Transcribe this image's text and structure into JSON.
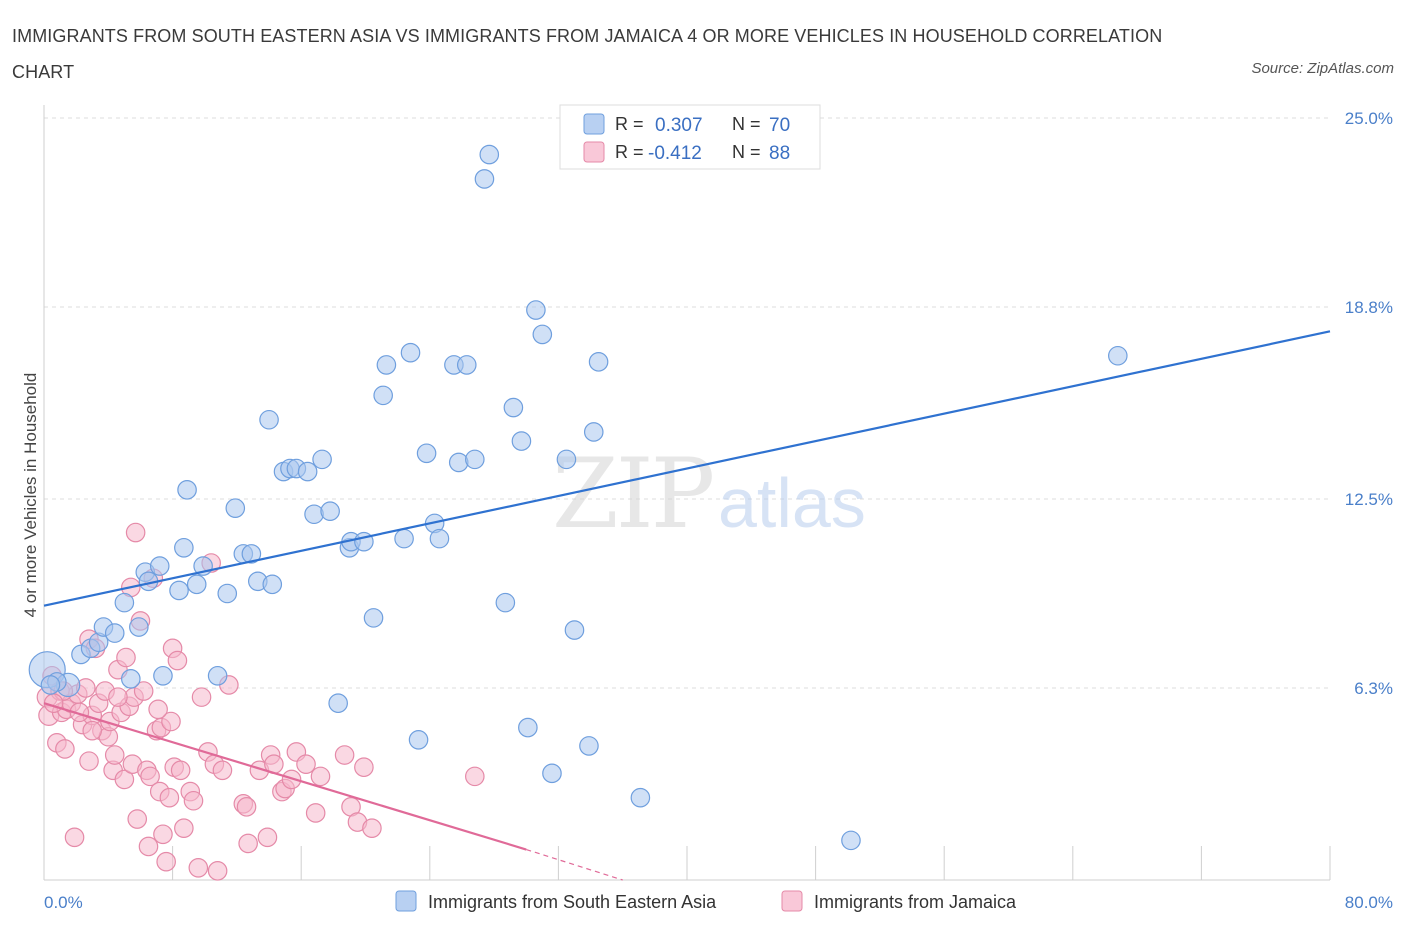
{
  "title": "IMMIGRANTS FROM SOUTH EASTERN ASIA VS IMMIGRANTS FROM JAMAICA 4 OR MORE VEHICLES IN HOUSEHOLD CORRELATION CHART",
  "source": "Source: ZipAtlas.com",
  "watermark": {
    "zip": "ZIP",
    "atlas": "atlas"
  },
  "colors": {
    "blue_fill": "#a9c6ef",
    "blue_stroke": "#6f9fde",
    "blue_line": "#2f72d0",
    "pink_fill": "#f5b8cc",
    "pink_stroke": "#e58aa8",
    "pink_line": "#e06a98",
    "grid": "#dcdcdc",
    "tick_text": "#4a7fc9"
  },
  "legend": {
    "row1_r_label": "R =",
    "row1_r_value": "0.307",
    "row1_n_label": "N =",
    "row1_n_value": "70",
    "row2_r_label": "R =",
    "row2_r_value": "-0.412",
    "row2_n_label": "N =",
    "row2_n_value": "88"
  },
  "chart_data": {
    "type": "scatter",
    "ylabel": "4 or more Vehicles in Household",
    "xlim": [
      0,
      80
    ],
    "ylim": [
      0,
      25
    ],
    "x_tick_labels": [
      "0.0%",
      "80.0%"
    ],
    "y_ticks": [
      {
        "value": 6.3,
        "label": "6.3%"
      },
      {
        "value": 12.5,
        "label": "12.5%"
      },
      {
        "value": 18.8,
        "label": "18.8%"
      },
      {
        "value": 25.0,
        "label": "25.0%"
      }
    ],
    "grid": true,
    "series": [
      {
        "name": "Immigrants from South Eastern Asia",
        "color": "blue",
        "trend": {
          "x": [
            0,
            80
          ],
          "y": [
            9.0,
            18.0
          ],
          "dashed_from_x": null
        },
        "points": [
          [
            0.2,
            6.9,
            22
          ],
          [
            1.5,
            6.4,
            14
          ],
          [
            0.8,
            6.5,
            11
          ],
          [
            2.3,
            7.4,
            11
          ],
          [
            2.9,
            7.6,
            11
          ],
          [
            3.4,
            7.8,
            11
          ],
          [
            3.7,
            8.3,
            11
          ],
          [
            4.4,
            8.1,
            11
          ],
          [
            5.0,
            9.1,
            11
          ],
          [
            5.4,
            6.6,
            11
          ],
          [
            5.9,
            8.3,
            11
          ],
          [
            6.3,
            10.1,
            11
          ],
          [
            6.5,
            9.8,
            11
          ],
          [
            7.2,
            10.3,
            11
          ],
          [
            7.4,
            6.7,
            11
          ],
          [
            8.4,
            9.5,
            11
          ],
          [
            8.7,
            10.9,
            11
          ],
          [
            8.9,
            12.8,
            11
          ],
          [
            9.5,
            9.7,
            11
          ],
          [
            9.9,
            10.3,
            11
          ],
          [
            10.8,
            6.7,
            11
          ],
          [
            11.4,
            9.4,
            11
          ],
          [
            11.9,
            12.2,
            11
          ],
          [
            12.4,
            10.7,
            11
          ],
          [
            12.9,
            10.7,
            11
          ],
          [
            13.3,
            9.8,
            11
          ],
          [
            14.2,
            9.7,
            11
          ],
          [
            14.0,
            15.1,
            11
          ],
          [
            14.9,
            13.4,
            11
          ],
          [
            15.3,
            13.5,
            11
          ],
          [
            15.7,
            13.5,
            11
          ],
          [
            16.4,
            13.4,
            11
          ],
          [
            16.8,
            12.0,
            11
          ],
          [
            17.3,
            13.8,
            11
          ],
          [
            17.8,
            12.1,
            11
          ],
          [
            18.3,
            5.8,
            11
          ],
          [
            19.0,
            10.9,
            11
          ],
          [
            19.1,
            11.1,
            11
          ],
          [
            19.9,
            11.1,
            11
          ],
          [
            20.5,
            8.6,
            11
          ],
          [
            21.1,
            15.9,
            11
          ],
          [
            21.3,
            16.9,
            11
          ],
          [
            22.4,
            11.2,
            11
          ],
          [
            22.8,
            17.3,
            11
          ],
          [
            23.3,
            4.6,
            11
          ],
          [
            23.8,
            14.0,
            11
          ],
          [
            24.3,
            11.7,
            11
          ],
          [
            24.6,
            11.2,
            11
          ],
          [
            25.5,
            16.9,
            11
          ],
          [
            25.8,
            13.7,
            11
          ],
          [
            26.3,
            16.9,
            11
          ],
          [
            26.8,
            13.8,
            11
          ],
          [
            27.4,
            23.0,
            11
          ],
          [
            27.7,
            23.8,
            11
          ],
          [
            28.7,
            9.1,
            11
          ],
          [
            29.2,
            15.5,
            11
          ],
          [
            29.7,
            14.4,
            11
          ],
          [
            30.1,
            5.0,
            11
          ],
          [
            30.6,
            18.7,
            11
          ],
          [
            31.0,
            17.9,
            11
          ],
          [
            31.6,
            3.5,
            11
          ],
          [
            32.5,
            13.8,
            11
          ],
          [
            33.0,
            8.2,
            11
          ],
          [
            33.9,
            4.4,
            11
          ],
          [
            34.2,
            14.7,
            11
          ],
          [
            34.5,
            17.0,
            11
          ],
          [
            37.1,
            2.7,
            11
          ],
          [
            50.2,
            1.3,
            11
          ],
          [
            66.8,
            17.2,
            11
          ],
          [
            0.4,
            6.4,
            11
          ]
        ]
      },
      {
        "name": "Immigrants from Jamaica",
        "color": "pink",
        "trend": {
          "x": [
            0,
            30
          ],
          "y": [
            5.8,
            1.0
          ],
          "dashed_from_x": 30,
          "dashed_to_x": 36,
          "dashed_to_y": 0.0
        },
        "points": [
          [
            0.2,
            6.0,
            12
          ],
          [
            0.3,
            5.4,
            12
          ],
          [
            0.5,
            6.7,
            11
          ],
          [
            0.8,
            4.5,
            11
          ],
          [
            1.0,
            6.2,
            11
          ],
          [
            1.1,
            5.5,
            11
          ],
          [
            1.3,
            4.3,
            11
          ],
          [
            1.4,
            5.6,
            11
          ],
          [
            1.7,
            5.8,
            11
          ],
          [
            1.9,
            1.4,
            11
          ],
          [
            2.1,
            6.1,
            11
          ],
          [
            2.4,
            5.1,
            11
          ],
          [
            2.6,
            6.3,
            11
          ],
          [
            2.8,
            3.9,
            11
          ],
          [
            2.8,
            7.9,
            11
          ],
          [
            3.0,
            5.4,
            11
          ],
          [
            3.2,
            7.6,
            11
          ],
          [
            3.4,
            5.8,
            11
          ],
          [
            3.6,
            4.9,
            11
          ],
          [
            3.8,
            6.2,
            11
          ],
          [
            4.0,
            4.7,
            11
          ],
          [
            4.1,
            5.2,
            11
          ],
          [
            4.3,
            3.6,
            11
          ],
          [
            4.4,
            4.1,
            11
          ],
          [
            4.6,
            6.9,
            11
          ],
          [
            4.8,
            5.5,
            11
          ],
          [
            5.0,
            3.3,
            11
          ],
          [
            5.1,
            7.3,
            11
          ],
          [
            5.3,
            5.7,
            11
          ],
          [
            5.5,
            3.8,
            11
          ],
          [
            5.4,
            9.6,
            11
          ],
          [
            5.6,
            6.0,
            11
          ],
          [
            5.7,
            11.4,
            11
          ],
          [
            5.8,
            2.0,
            11
          ],
          [
            6.0,
            8.5,
            11
          ],
          [
            6.2,
            6.2,
            11
          ],
          [
            6.4,
            3.6,
            11
          ],
          [
            6.5,
            1.1,
            11
          ],
          [
            6.6,
            3.4,
            11
          ],
          [
            6.8,
            9.9,
            11
          ],
          [
            7.0,
            4.9,
            11
          ],
          [
            7.2,
            2.9,
            11
          ],
          [
            7.3,
            5.0,
            11
          ],
          [
            7.4,
            1.5,
            11
          ],
          [
            7.6,
            0.6,
            11
          ],
          [
            7.8,
            2.7,
            11
          ],
          [
            7.9,
            5.2,
            11
          ],
          [
            8.0,
            7.6,
            11
          ],
          [
            8.1,
            3.7,
            11
          ],
          [
            8.3,
            7.2,
            11
          ],
          [
            8.5,
            3.6,
            11
          ],
          [
            8.7,
            1.7,
            11
          ],
          [
            9.1,
            2.9,
            11
          ],
          [
            9.3,
            2.6,
            11
          ],
          [
            9.6,
            0.4,
            11
          ],
          [
            9.8,
            6.0,
            11
          ],
          [
            10.2,
            4.2,
            11
          ],
          [
            10.4,
            10.4,
            11
          ],
          [
            10.6,
            3.8,
            11
          ],
          [
            10.8,
            0.3,
            11
          ],
          [
            11.1,
            3.6,
            11
          ],
          [
            11.5,
            6.4,
            11
          ],
          [
            12.4,
            2.5,
            11
          ],
          [
            12.6,
            2.4,
            11
          ],
          [
            12.7,
            1.2,
            11
          ],
          [
            13.4,
            3.6,
            11
          ],
          [
            13.9,
            1.4,
            11
          ],
          [
            14.1,
            4.1,
            11
          ],
          [
            14.3,
            3.8,
            11
          ],
          [
            14.8,
            2.9,
            11
          ],
          [
            15.0,
            3.0,
            11
          ],
          [
            15.4,
            3.3,
            11
          ],
          [
            15.7,
            4.2,
            11
          ],
          [
            16.3,
            3.8,
            11
          ],
          [
            16.9,
            2.2,
            11
          ],
          [
            17.2,
            3.4,
            11
          ],
          [
            18.7,
            4.1,
            11
          ],
          [
            19.1,
            2.4,
            11
          ],
          [
            19.5,
            1.9,
            11
          ],
          [
            19.9,
            3.7,
            11
          ],
          [
            20.4,
            1.7,
            11
          ],
          [
            26.8,
            3.4,
            11
          ],
          [
            1.2,
            6.2,
            11
          ],
          [
            2.2,
            5.5,
            11
          ],
          [
            3.0,
            4.9,
            11
          ],
          [
            4.6,
            6.0,
            11
          ],
          [
            0.6,
            5.8,
            11
          ],
          [
            7.1,
            5.6,
            11
          ]
        ]
      }
    ]
  }
}
